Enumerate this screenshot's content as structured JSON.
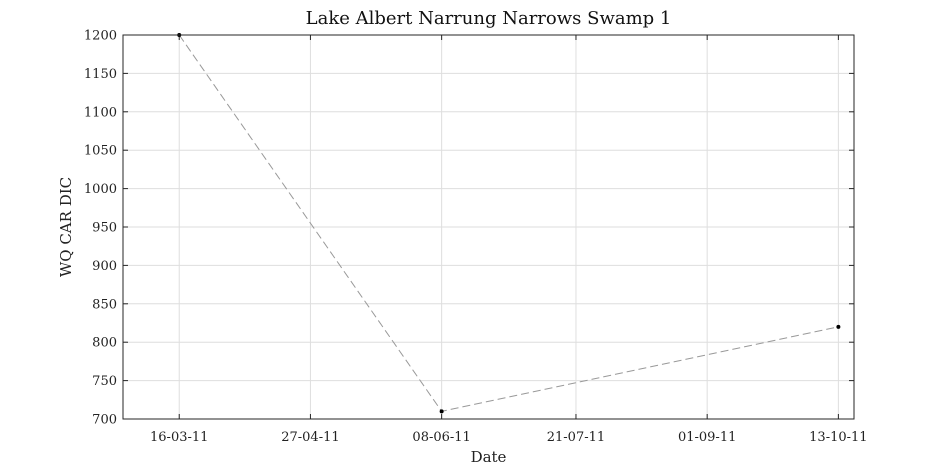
{
  "chart_data": {
    "type": "line",
    "title": "Lake Albert Narrung Narrows Swamp 1",
    "xlabel": "Date",
    "ylabel": "WQ CAR DIC",
    "ylim": [
      700,
      1200
    ],
    "xlim": [
      "2011-02-26",
      "2011-10-18"
    ],
    "yticks": [
      700,
      750,
      800,
      850,
      900,
      950,
      1000,
      1050,
      1100,
      1150,
      1200
    ],
    "xticks": [
      {
        "date": "2011-03-16",
        "label": "16-03-11"
      },
      {
        "date": "2011-04-27",
        "label": "27-04-11"
      },
      {
        "date": "2011-06-08",
        "label": "08-06-11"
      },
      {
        "date": "2011-07-21",
        "label": "21-07-11"
      },
      {
        "date": "2011-09-01",
        "label": "01-09-11"
      },
      {
        "date": "2011-10-13",
        "label": "13-10-11"
      }
    ],
    "grid": true,
    "series": [
      {
        "points": [
          {
            "x": "2011-03-16",
            "y": 1200
          },
          {
            "x": "2011-06-08",
            "y": 710
          },
          {
            "x": "2011-10-13",
            "y": 820
          }
        ],
        "line_color": "#999999",
        "line_style": "dashed",
        "marker_color": "#000000"
      }
    ]
  }
}
